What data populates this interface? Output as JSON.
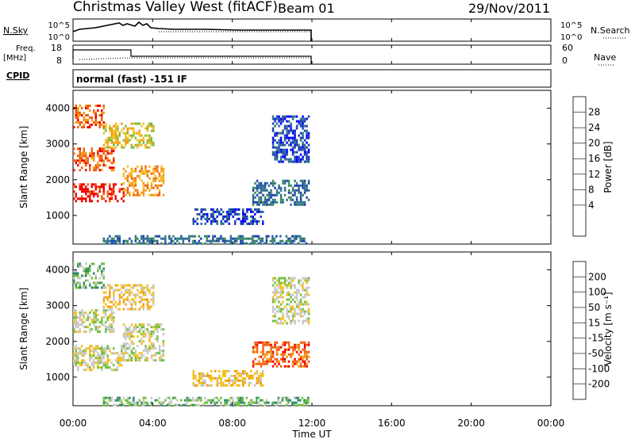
{
  "header": {
    "title": "Christmas Valley West (fitACF)",
    "beam": "Beam 01",
    "date": "29/Nov/2011"
  },
  "top_panels": {
    "nsky_label": "N.Sky",
    "nsky_ticks": [
      "10^5",
      "10^0"
    ],
    "nsearch_label": "N.Search",
    "freq_label_1": "Freq.",
    "freq_label_2": "[MHz]",
    "freq_ticks": [
      "18",
      "8"
    ],
    "nave_ticks": [
      "60",
      "0"
    ],
    "nave_label": "Nave",
    "cpid_label": "CPID",
    "cpid_text": "normal (fast) -151 IF"
  },
  "axes": {
    "xlabel": "Time UT",
    "x_ticks": [
      "00:00",
      "04:00",
      "08:00",
      "12:00",
      "16:00",
      "20:00",
      "00:00"
    ],
    "ylabel": "Slant Range [km]",
    "y_ticks": [
      "1000",
      "2000",
      "3000",
      "4000"
    ]
  },
  "power_colorbar": {
    "label": "Power [dB]",
    "ticks": [
      "28",
      "24",
      "20",
      "16",
      "12",
      "8",
      "4"
    ],
    "colors": [
      "#0000ff",
      "#1a3fb3",
      "#2e6e8e",
      "#3a8a5a",
      "#6fbf3c",
      "#f0c020",
      "#f59a10",
      "#f06010",
      "#ee0000"
    ]
  },
  "velocity_colorbar": {
    "label": "Velocity [m s⁻¹]",
    "ticks": [
      "200",
      "100",
      "50",
      "15",
      "-15",
      "-50",
      "-100",
      "-200"
    ],
    "colors": [
      "#1030c0",
      "#2a62a8",
      "#2f8a6a",
      "#6fbf3c",
      "#c8c8c8",
      "#f0c020",
      "#f59a10",
      "#f06010",
      "#ee0000"
    ]
  },
  "chart_data": [
    {
      "type": "heatmap",
      "name": "power",
      "x_range_hours": [
        0,
        24
      ],
      "y_range_km": [
        200,
        4500
      ],
      "data_extent_hours": [
        0,
        12
      ],
      "regions": [
        {
          "t": [
            0.0,
            2.5
          ],
          "r": [
            1400,
            1900
          ],
          "level": 8
        },
        {
          "t": [
            2.5,
            4.5
          ],
          "r": [
            1600,
            2400
          ],
          "level": 6
        },
        {
          "t": [
            0.0,
            2.0
          ],
          "r": [
            2300,
            2900
          ],
          "level": 7
        },
        {
          "t": [
            1.5,
            4.0
          ],
          "r": [
            2900,
            3600
          ],
          "level": 5
        },
        {
          "t": [
            0.0,
            1.5
          ],
          "r": [
            3500,
            4100
          ],
          "level": 7
        },
        {
          "t": [
            6.0,
            9.5
          ],
          "r": [
            800,
            1200
          ],
          "level": 1
        },
        {
          "t": [
            9.0,
            11.8
          ],
          "r": [
            1300,
            2000
          ],
          "level": 2
        },
        {
          "t": [
            10.0,
            11.8
          ],
          "r": [
            2500,
            3800
          ],
          "level": 1
        },
        {
          "t": [
            1.5,
            11.8
          ],
          "r": [
            250,
            450
          ],
          "level": 2
        }
      ]
    },
    {
      "type": "heatmap",
      "name": "velocity",
      "x_range_hours": [
        0,
        24
      ],
      "y_range_km": [
        200,
        4500
      ],
      "data_extent_hours": [
        0,
        12
      ],
      "regions": [
        {
          "t": [
            0.0,
            2.5
          ],
          "r": [
            1200,
            1900
          ],
          "level": 4
        },
        {
          "t": [
            2.5,
            4.5
          ],
          "r": [
            1500,
            2500
          ],
          "level": 4
        },
        {
          "t": [
            0.0,
            2.0
          ],
          "r": [
            2300,
            2900
          ],
          "level": 4
        },
        {
          "t": [
            1.5,
            4.0
          ],
          "r": [
            2900,
            3600
          ],
          "level": 5
        },
        {
          "t": [
            0.0,
            1.5
          ],
          "r": [
            3500,
            4200
          ],
          "level": 3
        },
        {
          "t": [
            6.0,
            9.5
          ],
          "r": [
            800,
            1200
          ],
          "level": 5
        },
        {
          "t": [
            9.0,
            11.8
          ],
          "r": [
            1300,
            2000
          ],
          "level": 7
        },
        {
          "t": [
            10.0,
            11.8
          ],
          "r": [
            2500,
            3800
          ],
          "level": 4
        },
        {
          "t": [
            1.5,
            11.8
          ],
          "r": [
            250,
            450
          ],
          "level": 3
        }
      ]
    }
  ]
}
